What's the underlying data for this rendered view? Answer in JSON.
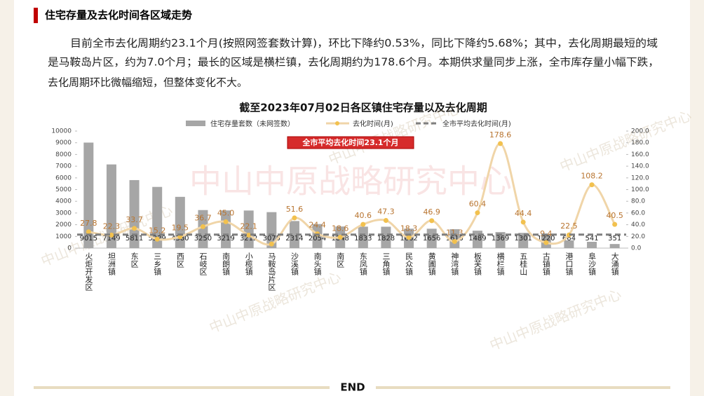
{
  "header": {
    "title": "住宅存量及去化时间各区域走势"
  },
  "paragraph": [
    "目前全市去化周期约23.1个月(按照网签套数计算)，环比下降约0.53%，同比下降约5.68%；其中，去化周期最短的域",
    "是马鞍岛片区，约为7.0个月；最长的区域是横栏镇，去化周期约为178.6个月。本期供求量同步上涨，全市库存量小幅下跌，",
    "去化周期环比微幅缩短，但整体变化不大。"
  ],
  "watermark": "中山中原战略研究中心",
  "footer": "END",
  "chart_data": {
    "type": "bar-line",
    "title": "截至2023年07月02日各区镇住宅存量以及去化周期",
    "annotation": "全市平均去化时间23.1个月",
    "categories": [
      "火炬开发区",
      "坦洲镇",
      "东区",
      "三乡镇",
      "西区",
      "石岐区",
      "南朗镇",
      "小榄镇",
      "马鞍岛片区",
      "沙溪镇",
      "南头镇",
      "南区",
      "东凤镇",
      "三角镇",
      "民众镇",
      "黄圃镇",
      "神湾镇",
      "板芙镇",
      "横栏镇",
      "五桂山",
      "古镇镇",
      "港口镇",
      "阜沙镇",
      "大涌镇"
    ],
    "series": [
      {
        "name": "住宅存量套数（未网签数）",
        "type": "bar",
        "color": "#a6a6a6",
        "values": [
          9015,
          7149,
          5811,
          5229,
          4380,
          3250,
          3219,
          3212,
          3075,
          2314,
          2054,
          1848,
          1833,
          1828,
          1662,
          1656,
          1615,
          1489,
          1369,
          1301,
          1220,
          664,
          541,
          351
        ]
      },
      {
        "name": "去化时间(月)",
        "type": "line",
        "axis": "y2",
        "color": "#f0d5a8",
        "marker_color": "#f2c14e",
        "values": [
          27.8,
          22.3,
          33.7,
          15.2,
          19.5,
          36.7,
          45.0,
          22.1,
          7.0,
          51.6,
          24.4,
          18.6,
          40.6,
          47.3,
          18.3,
          46.9,
          11.3,
          60.4,
          178.6,
          44.4,
          9.4,
          22.5,
          108.2,
          40.5
        ],
        "value_labels": [
          "27.8",
          "22.3",
          "33.7",
          "15.2",
          "19.5",
          "36.7",
          "45.0",
          "22.1",
          null,
          "51.6",
          "24.4",
          "18.6",
          "40.6",
          "47.3",
          "18.3",
          "46.9",
          "11.3",
          "60.4",
          "178.6",
          "44.4",
          "9.4",
          "22.5",
          "108.2",
          "40.5"
        ]
      },
      {
        "name": "全市平均去化时间(月)",
        "type": "hline",
        "axis": "y2",
        "color": "#7f7f7f",
        "value": 23.1
      }
    ],
    "ylim": [
      0,
      10000
    ],
    "yticks": [
      0,
      1000,
      2000,
      3000,
      4000,
      5000,
      6000,
      7000,
      8000,
      9000,
      10000
    ],
    "y2lim": [
      0,
      200
    ],
    "y2ticks": [
      {
        "value": 0,
        "label": "0.0"
      },
      {
        "value": 20,
        "label": "20.0"
      },
      {
        "value": 40,
        "label": "40.0"
      },
      {
        "value": 60,
        "label": "60.0"
      },
      {
        "value": 80,
        "label": "80.0"
      },
      {
        "value": 100,
        "label": "100.0"
      },
      {
        "value": 120,
        "label": "120.0"
      },
      {
        "value": 140,
        "label": "140.0"
      },
      {
        "value": 160,
        "label": "160.0"
      },
      {
        "value": 180,
        "label": "180.0"
      },
      {
        "value": 200,
        "label": "200.0"
      }
    ]
  }
}
